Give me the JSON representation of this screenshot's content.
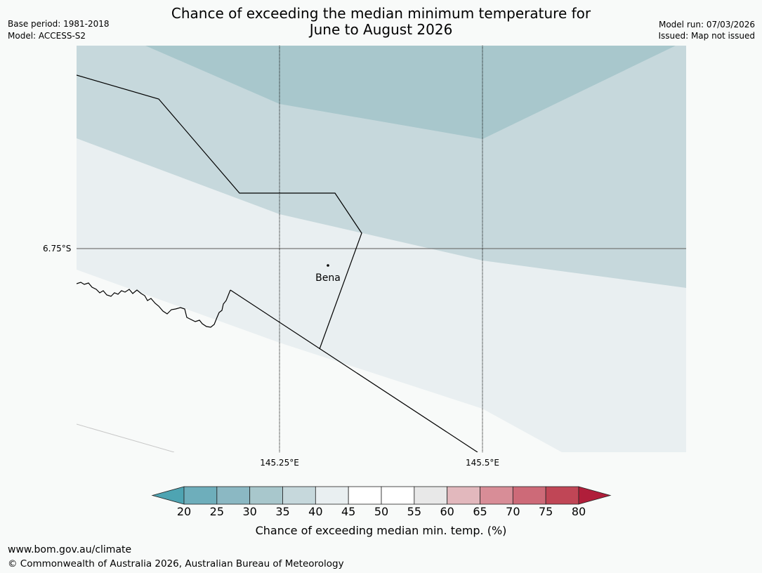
{
  "header": {
    "title_line1": "Chance of exceeding the median minimum temperature for",
    "title_line2": "June to August 2026",
    "base_period": "Base period: 1981-2018",
    "model": "Model: ACCESS-S2",
    "model_run": "Model run: 07/03/2026",
    "issued": "Issued: Map not issued"
  },
  "map": {
    "lat_label": "6.75°S",
    "lon_labels": [
      "145.25°E",
      "145.5°E"
    ],
    "place_name": "Bena",
    "colors": {
      "band_20_25": "#6eaebb",
      "band_30_35": "#a8c7cc",
      "band_35_40": "#c6d8dc",
      "band_40_45": "#e9eff1",
      "band_45_55": "#f8faf9"
    }
  },
  "colorbar": {
    "ticks": [
      "20",
      "25",
      "30",
      "35",
      "40",
      "45",
      "50",
      "55",
      "60",
      "65",
      "70",
      "75",
      "80"
    ],
    "colors": [
      "#4ea4b2",
      "#6eaebb",
      "#8bb8c3",
      "#a8c7cc",
      "#c6d8dc",
      "#e9eff1",
      "#ffffff",
      "#ffffff",
      "#e8e8e8",
      "#e2b8bd",
      "#d88d97",
      "#cd6a78",
      "#c04656",
      "#b01e3a"
    ],
    "label": "Chance of exceeding median min. temp. (%)"
  },
  "footer": {
    "url": "www.bom.gov.au/climate",
    "copyright": "© Commonwealth of Australia 2026, Australian Bureau of Meteorology"
  }
}
